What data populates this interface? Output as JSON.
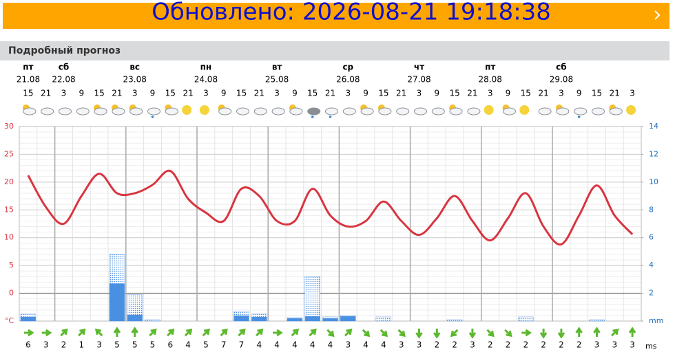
{
  "banner": {
    "text": "Обновлено: 2026-08-21 19:18:38"
  },
  "section_title": "Подробный прогноз",
  "chart_data": {
    "type": "line",
    "days": [
      {
        "col": 0,
        "name": "пт",
        "date": "21.08"
      },
      {
        "col": 2,
        "name": "сб",
        "date": "22.08"
      },
      {
        "col": 6,
        "name": "вс",
        "date": "23.08"
      },
      {
        "col": 10,
        "name": "пн",
        "date": "24.08"
      },
      {
        "col": 14,
        "name": "вт",
        "date": "25.08"
      },
      {
        "col": 18,
        "name": "ср",
        "date": "26.08"
      },
      {
        "col": 22,
        "name": "чт",
        "date": "27.08"
      },
      {
        "col": 26,
        "name": "пт",
        "date": "28.08"
      },
      {
        "col": 30,
        "name": "сб",
        "date": "29.08"
      }
    ],
    "hours": [
      15,
      21,
      3,
      9,
      15,
      21,
      3,
      9,
      15,
      21,
      3,
      9,
      15,
      21,
      3,
      9,
      15,
      21,
      3,
      9,
      15,
      21,
      3,
      9,
      15,
      21,
      3,
      9,
      15,
      21,
      3,
      9,
      15,
      21,
      3
    ],
    "temperature": {
      "color": "#d9343f",
      "values": [
        21.2,
        15.5,
        12.5,
        17.5,
        21.5,
        18,
        18,
        19.5,
        22,
        17,
        14.5,
        13,
        18.8,
        17.5,
        13,
        13,
        18.8,
        14,
        12,
        13,
        16.5,
        13,
        10.5,
        13.5,
        17.5,
        13,
        9.5,
        13.5,
        18,
        12,
        8.8,
        14,
        19.4,
        14,
        10.6
      ]
    },
    "precip": {
      "color": "#4a90e2",
      "values": [
        0.3,
        null,
        null,
        null,
        null,
        2.7,
        0.45,
        null,
        null,
        null,
        null,
        null,
        0.4,
        0.3,
        null,
        0.2,
        0.35,
        0.2,
        0.35,
        null,
        null,
        null,
        null,
        null,
        null,
        null,
        null,
        null,
        null,
        null,
        null,
        null,
        null,
        null,
        null
      ]
    },
    "precip_max": {
      "color": "#4a90e2",
      "values": [
        0.5,
        null,
        null,
        null,
        null,
        4.8,
        1.9,
        0.1,
        null,
        null,
        null,
        null,
        0.7,
        0.5,
        null,
        0.25,
        3.2,
        0.3,
        0.4,
        null,
        0.3,
        null,
        null,
        null,
        0.1,
        null,
        null,
        null,
        0.3,
        null,
        null,
        null,
        0.1,
        null,
        null
      ]
    },
    "ylim": [
      -5,
      30
    ],
    "yticks": [
      {
        "value": -5,
        "label": "°C"
      },
      0,
      5,
      10,
      15,
      20,
      25,
      30
    ],
    "y2lim": [
      0,
      14
    ],
    "y2ticks": [
      {
        "value": 0,
        "label": "mm"
      },
      2,
      4,
      6,
      8,
      10,
      12,
      14
    ],
    "wind_speed": [
      6,
      3,
      2,
      1,
      3,
      5,
      5,
      5,
      6,
      4,
      5,
      7,
      7,
      4,
      4,
      4,
      4,
      4,
      3,
      4,
      4,
      3,
      3,
      2,
      2,
      3,
      2,
      2,
      2,
      2,
      2,
      2,
      3,
      3,
      3
    ],
    "wind_direction": [
      90,
      90,
      45,
      45,
      -45,
      0,
      0,
      45,
      45,
      45,
      45,
      45,
      45,
      45,
      90,
      45,
      45,
      135,
      45,
      135,
      135,
      135,
      180,
      180,
      225,
      180,
      135,
      135,
      90,
      180,
      180,
      0,
      0,
      45,
      0
    ],
    "wind_unit": "ms",
    "grid": true
  }
}
